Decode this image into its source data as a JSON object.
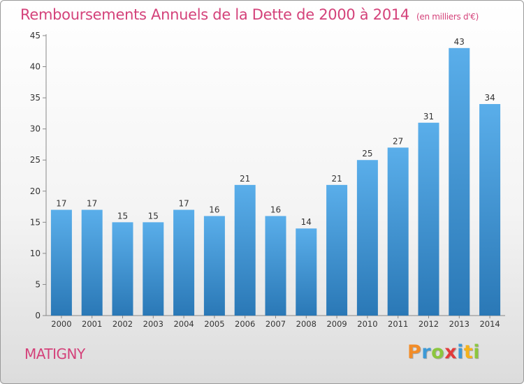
{
  "chart_data": {
    "type": "bar",
    "title": "Remboursements Annuels de la Dette de 2000 à 2014",
    "subtitle": "(en milliers d'€)",
    "xlabel": "",
    "ylabel": "",
    "categories": [
      "2000",
      "2001",
      "2002",
      "2003",
      "2004",
      "2005",
      "2006",
      "2007",
      "2008",
      "2009",
      "2010",
      "2011",
      "2012",
      "2013",
      "2014"
    ],
    "values": [
      17,
      17,
      15,
      15,
      17,
      16,
      21,
      16,
      14,
      21,
      25,
      27,
      31,
      43,
      34
    ],
    "ylim": [
      0,
      45
    ],
    "yticks": [
      0,
      5,
      10,
      15,
      20,
      25,
      30,
      35,
      40,
      45
    ],
    "grid": false,
    "data_labels": true,
    "legend": "none",
    "bar_color_top": "#5aaeea",
    "bar_color_bottom": "#2a78b6"
  },
  "footer": {
    "city": "MATIGNY",
    "logo": "Proxiti"
  },
  "colors": {
    "accent": "#d4427a",
    "logo_letters": [
      "#f28c28",
      "#3d9ad6",
      "#8cc63f",
      "#e23b3b",
      "#3d9ad6",
      "#f5b21b",
      "#8cc63f"
    ]
  }
}
